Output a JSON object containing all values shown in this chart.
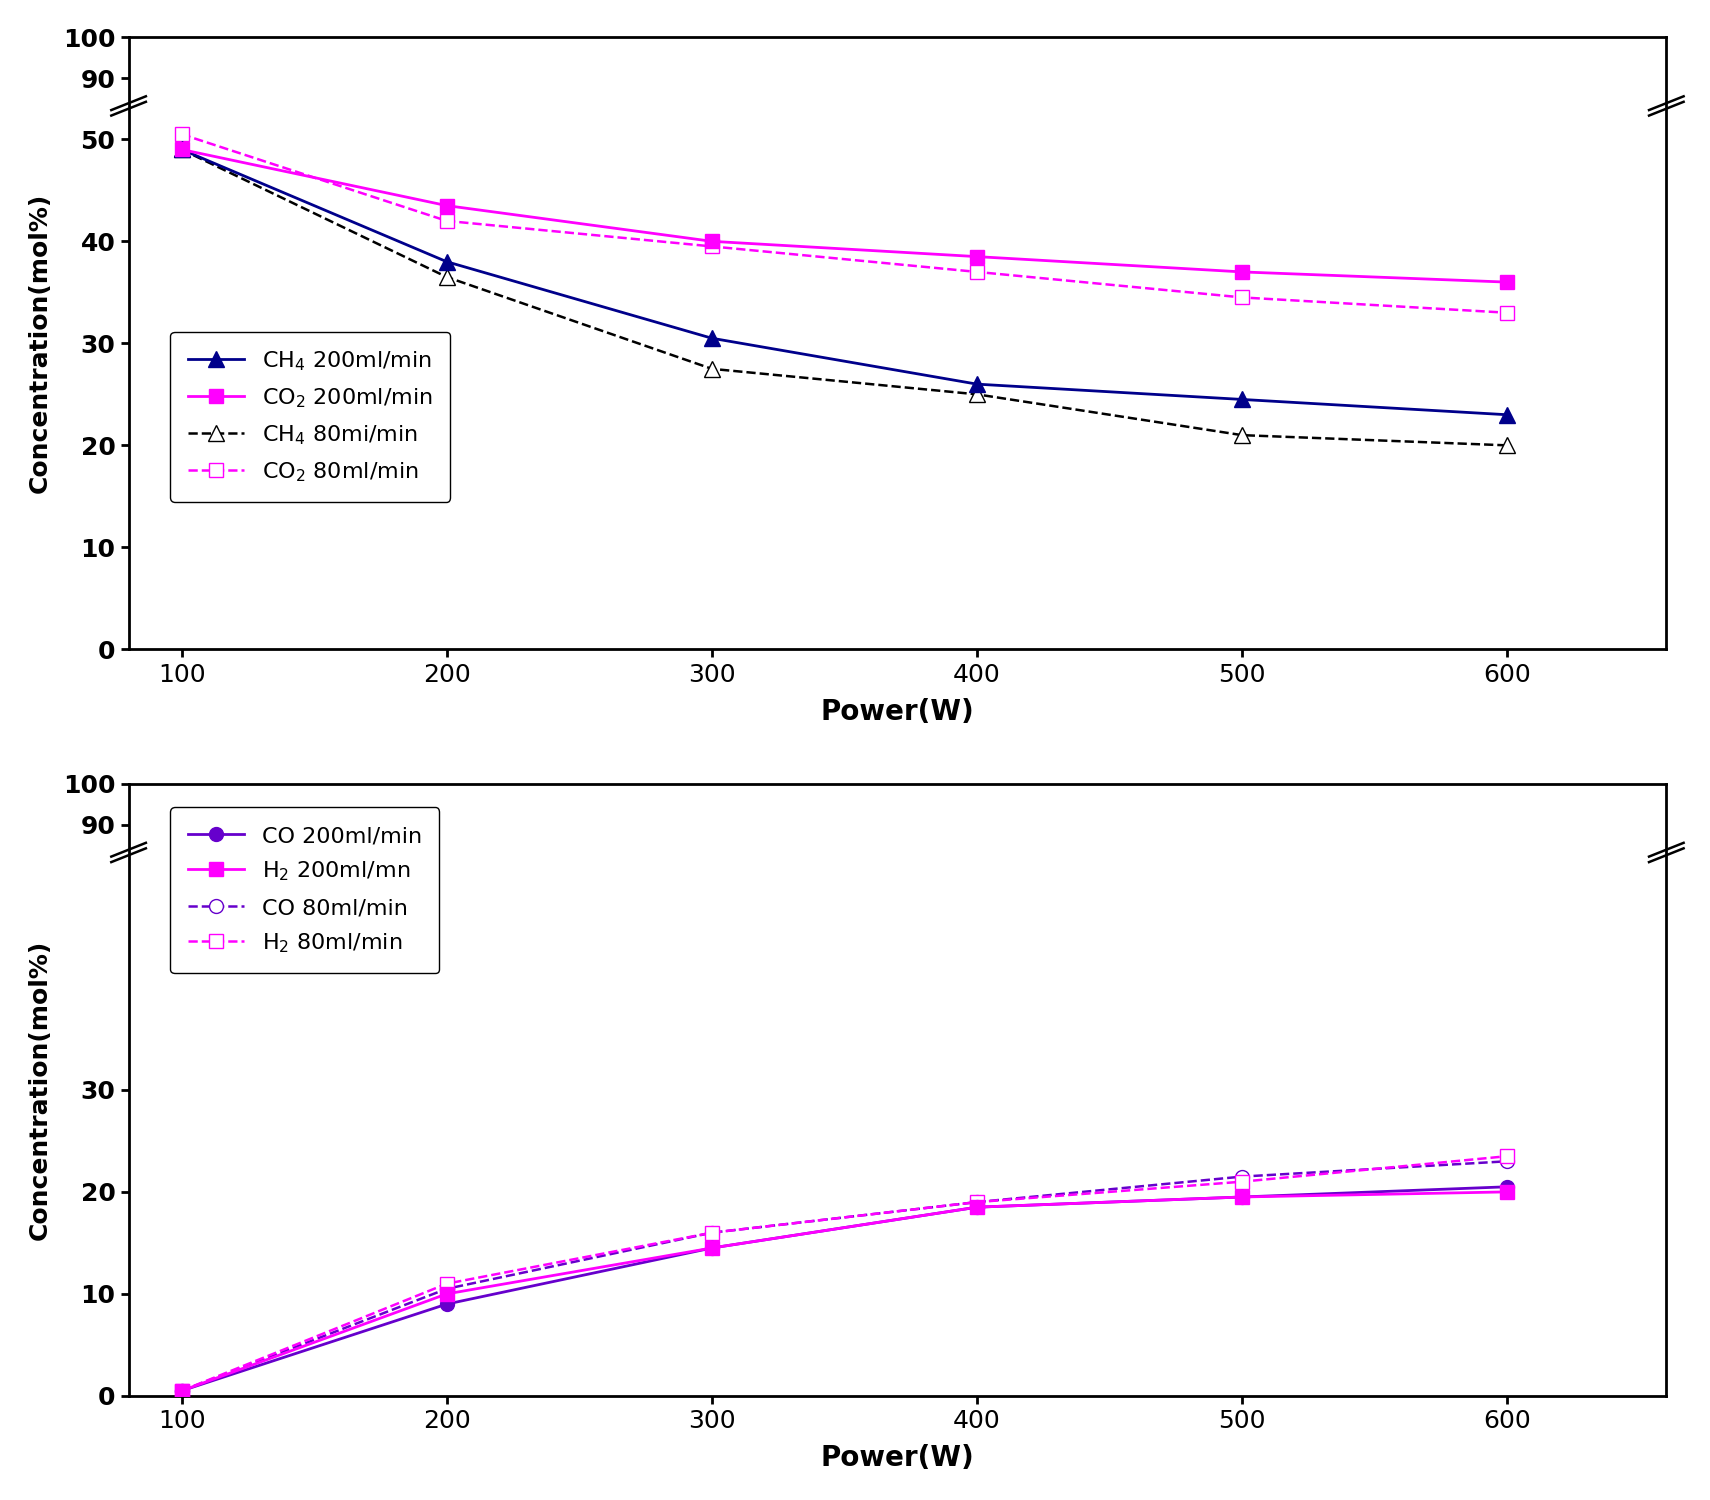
{
  "power": [
    100,
    200,
    300,
    400,
    500,
    600
  ],
  "top": {
    "CH4_200": [
      49,
      38,
      30.5,
      26,
      24.5,
      23
    ],
    "CO2_200": [
      49,
      43.5,
      40,
      38.5,
      37,
      36
    ],
    "CH4_80": [
      49,
      36.5,
      27.5,
      25,
      21,
      20
    ],
    "CO2_80": [
      50.5,
      42,
      39.5,
      37,
      34.5,
      33
    ]
  },
  "bottom": {
    "CO_200": [
      0.5,
      9,
      14.5,
      18.5,
      19.5,
      20.5
    ],
    "H2_200": [
      0.5,
      10,
      14.5,
      18.5,
      19.5,
      20
    ],
    "CO_80": [
      0.5,
      10.5,
      16,
      19,
      21.5,
      23
    ],
    "H2_80": [
      0.5,
      11,
      16,
      19,
      21,
      23.5
    ]
  },
  "colors": {
    "navy": "#00008B",
    "magenta": "#FF00FF",
    "blue_purple": "#6600CC"
  },
  "xlabel": "Power(W)",
  "ylabel": "Concentration(mol%)",
  "xlim": [
    80,
    660
  ],
  "xticks": [
    100,
    200,
    300,
    400,
    500,
    600
  ],
  "top_yticks_data": [
    0,
    10,
    20,
    30,
    40,
    50,
    90,
    100
  ],
  "top_ytick_pos": [
    0,
    10,
    20,
    30,
    40,
    50,
    56,
    60
  ],
  "bottom_yticks_data": [
    0,
    10,
    20,
    30,
    90,
    100
  ],
  "bottom_ytick_pos": [
    0,
    10,
    20,
    30,
    56,
    60
  ]
}
